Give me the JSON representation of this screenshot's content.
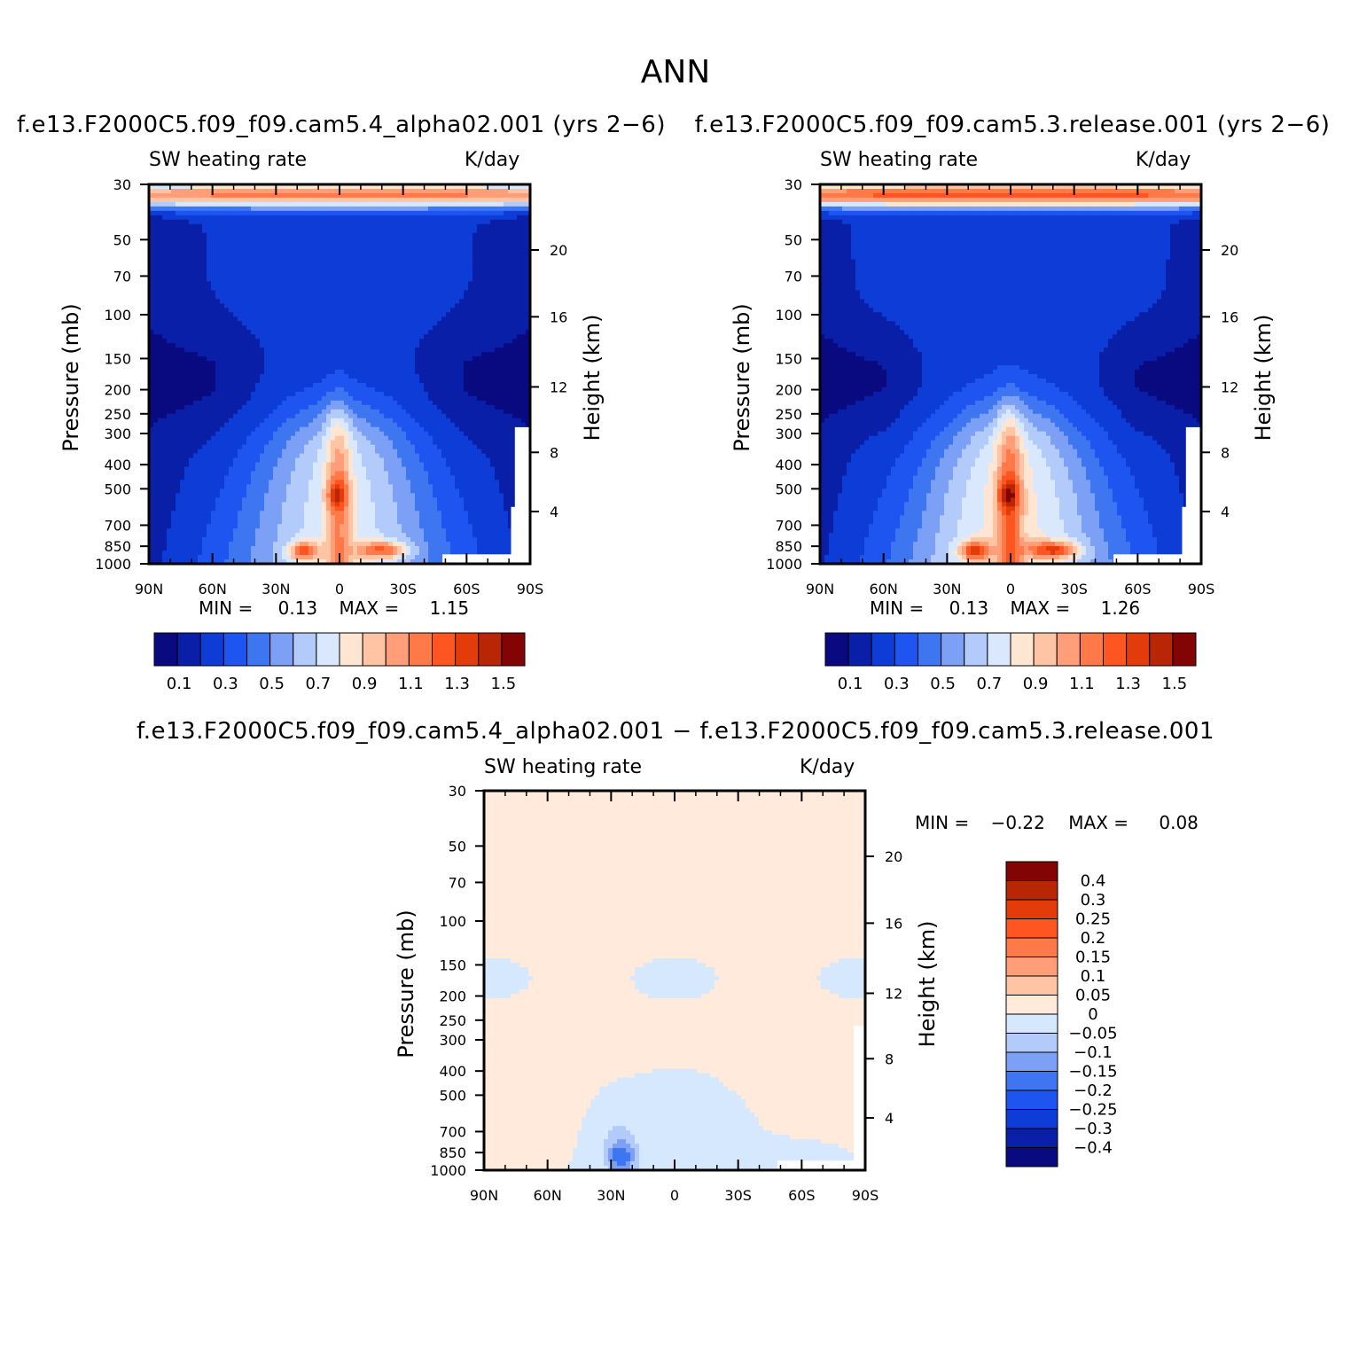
{
  "page": {
    "title": "ANN",
    "bottom_title": "f.e13.F2000C5.f09_f09.cam5.4_alpha02.001  −  f.e13.F2000C5.f09_f09.cam5.3.release.001"
  },
  "panels": [
    {
      "case_title": "f.e13.F2000C5.f09_f09.cam5.4_alpha02.001 (yrs 2−6)",
      "variable": "SW heating rate",
      "units": "K/day",
      "min_label": "MIN =",
      "min_value": "0.13",
      "max_label": "MAX =",
      "max_value": "1.15"
    },
    {
      "case_title": "f.e13.F2000C5.f09_f09.cam5.3.release.001 (yrs 2−6)",
      "variable": "SW heating rate",
      "units": "K/day",
      "min_label": "MIN =",
      "min_value": "0.13",
      "max_label": "MAX =",
      "max_value": "1.26"
    },
    {
      "case_title": "",
      "variable": "SW heating rate",
      "units": "K/day",
      "min_label": "MIN =",
      "min_value": "−0.22",
      "max_label": "MAX =",
      "max_value": "0.08"
    }
  ],
  "chart_data": [
    {
      "type": "heatmap",
      "title": "f.e13.F2000C5.f09_f09.cam5.4_alpha02.001 (yrs 2−6)",
      "subtitle": "SW heating rate (K/day)",
      "xlabel": "",
      "ylabel": "Pressure (mb)",
      "y2label": "Height (km)",
      "x_ticks": [
        "90N",
        "60N",
        "30N",
        "0",
        "30S",
        "60S",
        "90S"
      ],
      "y_ticks": [
        30,
        50,
        70,
        100,
        150,
        200,
        250,
        300,
        400,
        500,
        700,
        850,
        1000
      ],
      "y2_ticks": [
        20,
        16,
        12,
        8,
        4
      ],
      "y_log": true,
      "colorbar_labels": [
        "0.1",
        "0.3",
        "0.5",
        "0.7",
        "0.9",
        "1.1",
        "1.3",
        "1.5"
      ],
      "min": 0.13,
      "max": 1.15
    },
    {
      "type": "heatmap",
      "title": "f.e13.F2000C5.f09_f09.cam5.3.release.001 (yrs 2−6)",
      "subtitle": "SW heating rate (K/day)",
      "xlabel": "",
      "ylabel": "Pressure (mb)",
      "y2label": "Height (km)",
      "x_ticks": [
        "90N",
        "60N",
        "30N",
        "0",
        "30S",
        "60S",
        "90S"
      ],
      "y_ticks": [
        30,
        50,
        70,
        100,
        150,
        200,
        250,
        300,
        400,
        500,
        700,
        850,
        1000
      ],
      "y2_ticks": [
        20,
        16,
        12,
        8,
        4
      ],
      "y_log": true,
      "colorbar_labels": [
        "0.1",
        "0.3",
        "0.5",
        "0.7",
        "0.9",
        "1.1",
        "1.3",
        "1.5"
      ],
      "min": 0.13,
      "max": 1.26
    },
    {
      "type": "heatmap",
      "title": "f.e13.F2000C5.f09_f09.cam5.4_alpha02.001 − f.e13.F2000C5.f09_f09.cam5.3.release.001",
      "subtitle": "SW heating rate (K/day)",
      "xlabel": "",
      "ylabel": "Pressure (mb)",
      "y2label": "Height (km)",
      "x_ticks": [
        "90N",
        "60N",
        "30N",
        "0",
        "30S",
        "60S",
        "90S"
      ],
      "y_ticks": [
        30,
        50,
        70,
        100,
        150,
        200,
        250,
        300,
        400,
        500,
        700,
        850,
        1000
      ],
      "y2_ticks": [
        20,
        16,
        12,
        8,
        4
      ],
      "y_log": true,
      "colorbar_labels": [
        "0.4",
        "0.3",
        "0.25",
        "0.2",
        "0.15",
        "0.1",
        "0.05",
        "0",
        "−0.05",
        "−0.1",
        "−0.15",
        "−0.2",
        "−0.25",
        "−0.3",
        "−0.4"
      ],
      "min": -0.22,
      "max": 0.08
    }
  ],
  "colors": {
    "abs_palette": [
      "#0a0a80",
      "#0a1fa8",
      "#0d3dd6",
      "#1e55f0",
      "#3e76f2",
      "#7ba0f6",
      "#b2cbfa",
      "#d9e8fd",
      "#ffe6d3",
      "#ffc4a4",
      "#ff9e78",
      "#ff7a48",
      "#ff5520",
      "#e33b0a",
      "#b82606",
      "#820404"
    ],
    "diff_palette": [
      "#820404",
      "#b82606",
      "#e33b0a",
      "#ff5520",
      "#ff7a48",
      "#ff9e78",
      "#ffc4a4",
      "#ffeadb",
      "#d6e8fd",
      "#b2cbfa",
      "#7ba0f6",
      "#3e76f2",
      "#1e55f0",
      "#0d3dd6",
      "#0a1fa8",
      "#0a0a80"
    ]
  }
}
